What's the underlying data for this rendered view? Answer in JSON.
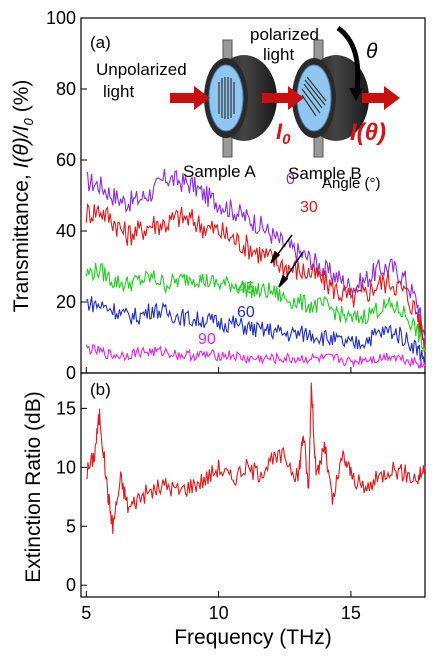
{
  "figure": {
    "panel_a_label": "(a)",
    "panel_b_label": "(b)",
    "xlabel": "Frequency (THz)",
    "ylabel_a_pre": "Transmittance,",
    "ylabel_a_mid": "I(θ)/I",
    "ylabel_a_sub": "0",
    "ylabel_a_post": "(%)",
    "ylabel_b": "Extinction Ratio (dB)",
    "x_ticks": [
      "5",
      "10",
      "15"
    ],
    "y_ticks_a": [
      "0",
      "20",
      "40",
      "60",
      "80",
      "100"
    ],
    "y_ticks_b": [
      "0",
      "5",
      "10",
      "15"
    ],
    "legend_title": "Angle (°)",
    "inset": {
      "unpolarized_line1": "Unpolarized",
      "unpolarized_line2": "light",
      "polarized_line1": "polarized",
      "polarized_line2": "light",
      "theta": "θ",
      "i0": "I",
      "i0_sub": "0",
      "itheta": "I(θ)",
      "sample_a": "Sample A",
      "sample_b": "Sample B"
    },
    "colors": {
      "deg0": "#8a2be2",
      "deg30": "#e0191b",
      "deg45": "#22cc22",
      "deg60": "#1f2fc4",
      "deg90": "#e028e0",
      "extinction": "#e0191b",
      "arrow": "#c81010"
    }
  },
  "chart_data": [
    {
      "type": "line",
      "panel": "a",
      "title": "",
      "xlabel": "",
      "ylabel": "Transmittance, I(θ)/I0 (%)",
      "xlim": [
        4.8,
        17.8
      ],
      "ylim": [
        0,
        100
      ],
      "x": [
        5,
        5.5,
        6,
        6.5,
        7,
        7.5,
        8,
        8.5,
        9,
        9.5,
        10,
        10.5,
        11,
        11.5,
        12,
        12.5,
        13,
        13.5,
        14,
        14.5,
        15,
        15.5,
        16,
        16.5,
        17,
        17.5,
        17.8
      ],
      "series": [
        {
          "name": "0",
          "values": [
            54,
            53,
            50,
            48,
            49,
            51,
            55,
            54,
            53,
            50,
            48,
            46,
            44,
            42,
            39,
            36,
            34,
            32,
            29,
            27,
            24,
            26,
            29,
            30,
            27,
            20,
            10
          ]
        },
        {
          "name": "30",
          "values": [
            45,
            46,
            43,
            39,
            40,
            42,
            42,
            44,
            43,
            41,
            40,
            38,
            36,
            34,
            32,
            30,
            29,
            28,
            26,
            23,
            21,
            22,
            25,
            26,
            23,
            17,
            8
          ]
        },
        {
          "name": "45",
          "values": [
            28,
            29,
            26,
            25,
            26,
            27,
            25,
            26,
            27,
            26,
            25,
            25,
            24,
            23,
            23,
            21,
            20,
            19,
            19,
            17,
            15,
            16,
            18,
            19,
            17,
            12,
            6
          ]
        },
        {
          "name": "60",
          "values": [
            20,
            19,
            18,
            16,
            16,
            18,
            17,
            16,
            15,
            15,
            14,
            14,
            13,
            12,
            12,
            11,
            11,
            11,
            10,
            9,
            8,
            9,
            11,
            12,
            10,
            7,
            4
          ]
        },
        {
          "name": "90",
          "values": [
            7,
            6,
            5,
            5,
            6,
            6,
            6,
            5,
            5,
            5,
            5,
            5,
            4,
            4,
            4,
            4,
            4,
            4,
            4,
            4,
            3,
            4,
            4,
            5,
            4,
            3,
            2
          ]
        }
      ]
    },
    {
      "type": "line",
      "panel": "b",
      "title": "",
      "xlabel": "Frequency (THz)",
      "ylabel": "Extinction Ratio (dB)",
      "xlim": [
        4.8,
        17.8
      ],
      "ylim": [
        -1,
        18
      ],
      "x": [
        5,
        5.3,
        5.5,
        5.8,
        6,
        6.3,
        6.6,
        7,
        7.5,
        8,
        8.5,
        9,
        9.5,
        10,
        10.5,
        11,
        11.5,
        12,
        12.5,
        13,
        13.2,
        13.4,
        13.5,
        13.7,
        14,
        14.3,
        14.7,
        15,
        15.5,
        16,
        16.5,
        17,
        17.5,
        17.8
      ],
      "series": [
        {
          "name": "",
          "values": [
            9.5,
            11,
            14.5,
            8,
            5,
            9,
            6.5,
            7.5,
            8,
            8.5,
            8,
            8.5,
            9,
            10,
            9,
            10,
            9.5,
            10.5,
            11,
            9,
            13,
            8,
            17,
            9,
            12,
            7,
            11,
            9.5,
            8,
            9,
            10,
            9.5,
            9,
            10
          ]
        }
      ]
    }
  ]
}
